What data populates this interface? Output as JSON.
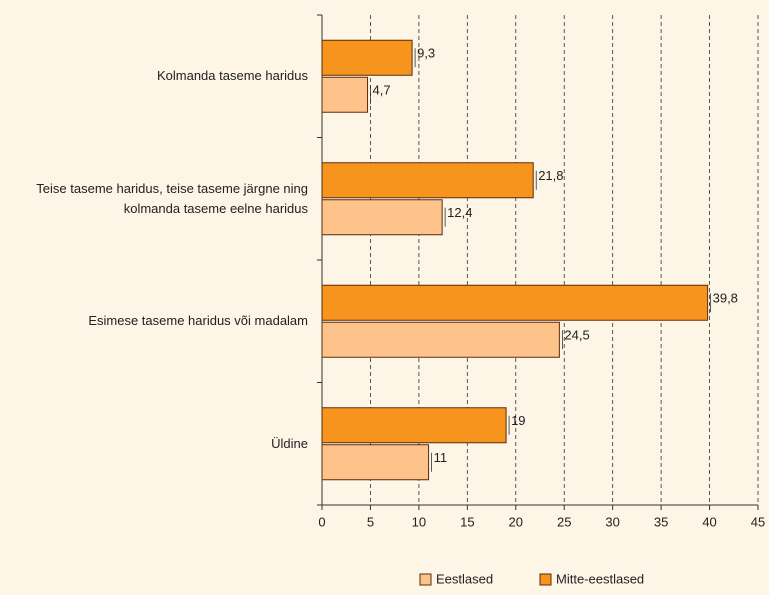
{
  "chart_data": {
    "type": "hbar",
    "categories": [
      "Kolmanda taseme haridus",
      "Teise taseme haridus, teise taseme järgne ning kolmanda taseme eelne haridus",
      "Esimese taseme haridus või madalam",
      "Üldine"
    ],
    "series": [
      {
        "name": "Eestlased",
        "color": "#fdc38a",
        "values": [
          4.7,
          12.4,
          24.5,
          11
        ],
        "value_labels": [
          "4,7",
          "12,4",
          "24,5",
          "11"
        ]
      },
      {
        "name": "Mitte-eestlased",
        "color": "#f7941d",
        "values": [
          9.3,
          21.8,
          39.8,
          19
        ],
        "value_labels": [
          "9,3",
          "21,8",
          "39,8",
          "19"
        ]
      }
    ],
    "xlim": [
      0,
      45
    ],
    "xticks": [
      0,
      5,
      10,
      15,
      20,
      25,
      30,
      35,
      40,
      45
    ],
    "grid": true
  }
}
